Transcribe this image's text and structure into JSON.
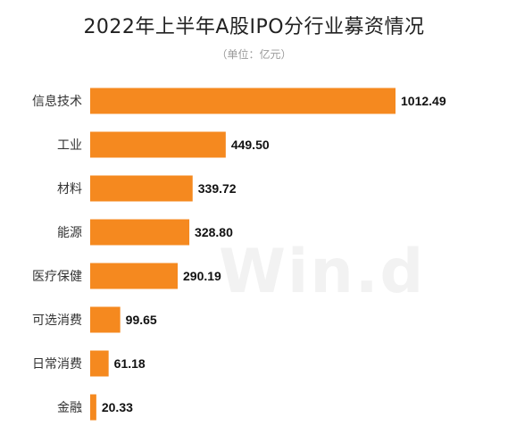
{
  "chart_data": {
    "type": "bar",
    "orientation": "horizontal",
    "title": "2022年上半年A股IPO分行业募资情况",
    "subtitle": "（单位：亿元）",
    "categories": [
      "信息技术",
      "工业",
      "材料",
      "能源",
      "医疗保健",
      "可选消费",
      "日常消费",
      "金融"
    ],
    "values": [
      1012.49,
      449.5,
      339.72,
      328.8,
      290.19,
      99.65,
      61.18,
      20.33
    ],
    "value_labels": [
      "1012.49",
      "449.50",
      "339.72",
      "328.80",
      "290.19",
      "99.65",
      "61.18",
      "20.33"
    ],
    "xlim": [
      0,
      1012.49
    ],
    "grid": false,
    "bar_color": "#F5891F",
    "watermark": "Win.d"
  }
}
